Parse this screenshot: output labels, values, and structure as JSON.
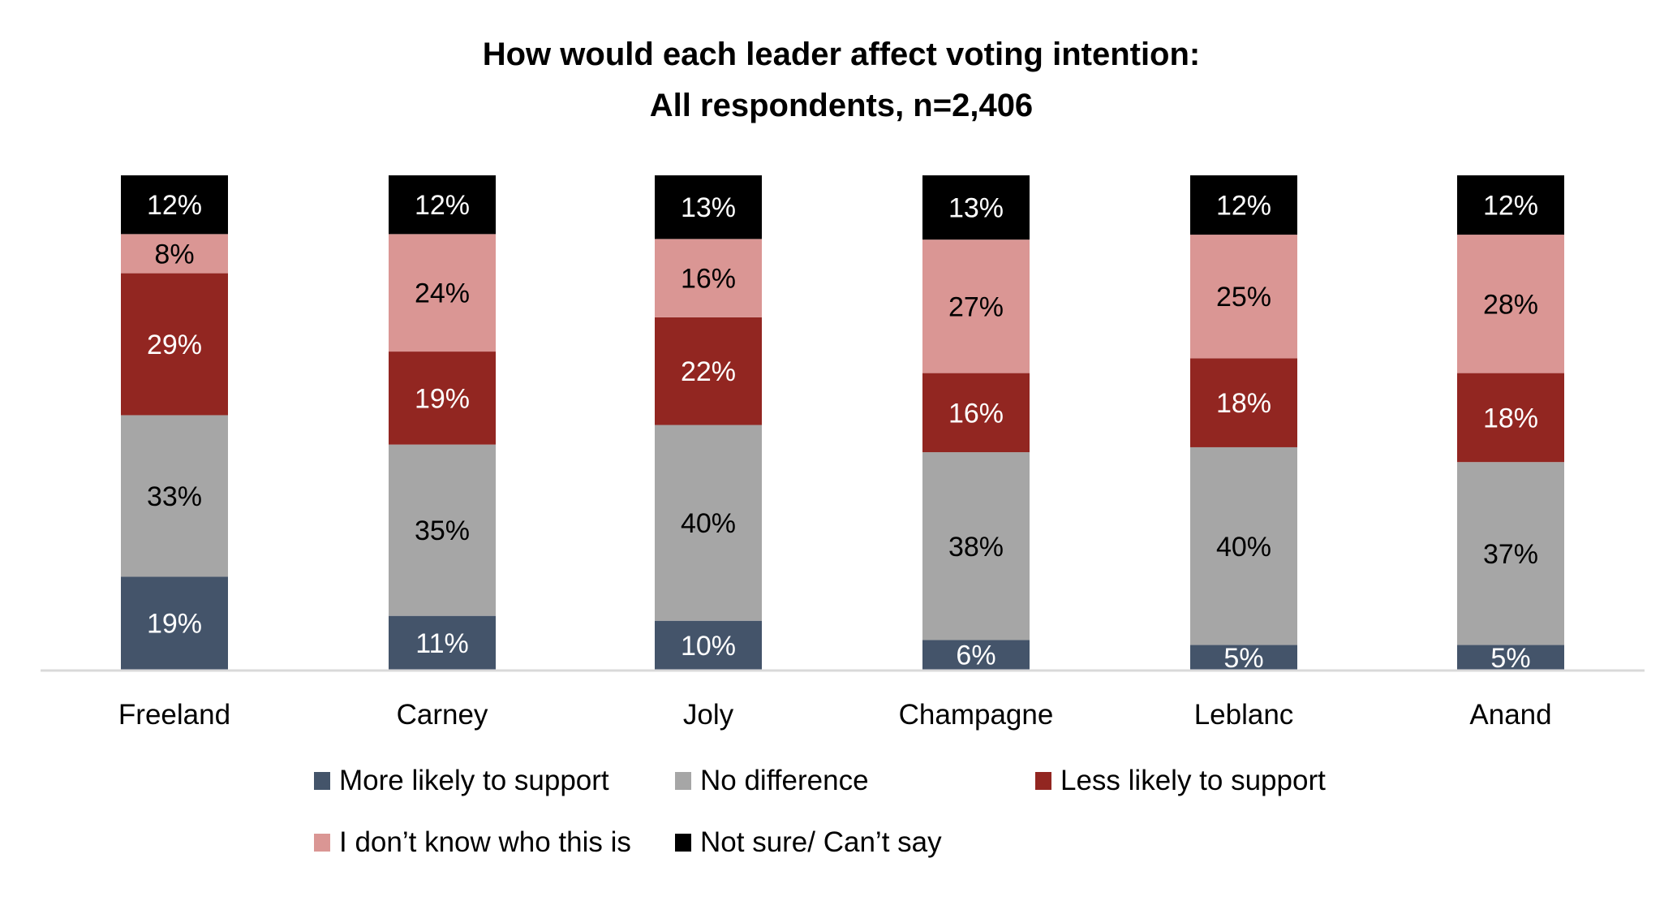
{
  "chart_data": {
    "type": "bar",
    "stacked": true,
    "title": "How would each leader affect voting intention:",
    "subtitle": "All respondents, n=2,406",
    "categories": [
      "Freeland",
      "Carney",
      "Joly",
      "Champagne",
      "Leblanc",
      "Anand"
    ],
    "series": [
      {
        "name": "More likely to support",
        "color": "#44546a",
        "label_color": "#ffffff",
        "values": [
          19,
          11,
          10,
          6,
          5,
          5
        ]
      },
      {
        "name": "No difference",
        "color": "#a6a6a6",
        "label_color": "#000000",
        "values": [
          33,
          35,
          40,
          38,
          40,
          37
        ]
      },
      {
        "name": "Less likely to support",
        "color": "#922621",
        "label_color": "#ffffff",
        "values": [
          29,
          19,
          22,
          16,
          18,
          18
        ]
      },
      {
        "name": "I don’t know who this is",
        "color": "#da9694",
        "label_color": "#000000",
        "values": [
          8,
          24,
          16,
          27,
          25,
          28
        ]
      },
      {
        "name": "Not sure/ Can’t say",
        "color": "#000000",
        "label_color": "#ffffff",
        "values": [
          12,
          12,
          13,
          13,
          12,
          12
        ]
      }
    ],
    "value_suffix": "%",
    "legend_position": "bottom",
    "grid": false,
    "y_axis_visible": false
  }
}
